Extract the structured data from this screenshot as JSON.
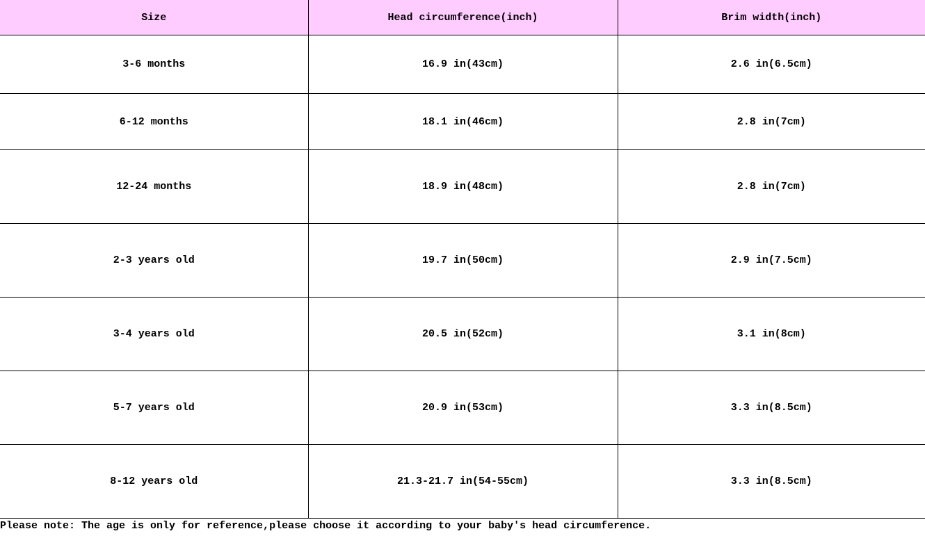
{
  "colors": {
    "header_bg": "#ffccff"
  },
  "table": {
    "headers": [
      "Size",
      "Head circumference(inch)",
      "Brim width(inch)"
    ],
    "rows": [
      [
        "3-6 months",
        "16.9 in(43cm)",
        "2.6 in(6.5cm)"
      ],
      [
        "6-12 months",
        "18.1 in(46cm)",
        "2.8 in(7cm)"
      ],
      [
        "12-24 months",
        "18.9 in(48cm)",
        "2.8 in(7cm)"
      ],
      [
        "2-3 years old",
        "19.7 in(50cm)",
        "2.9 in(7.5cm)"
      ],
      [
        "3-4 years old",
        "20.5 in(52cm)",
        "3.1 in(8cm)"
      ],
      [
        "5-7 years old",
        "20.9 in(53cm)",
        "3.3 in(8.5cm)"
      ],
      [
        "8-12 years old",
        "21.3-21.7 in(54-55cm)",
        "3.3 in(8.5cm)"
      ]
    ]
  },
  "note": "Please note: The age is only for reference,please choose it according to your baby's head circumference."
}
